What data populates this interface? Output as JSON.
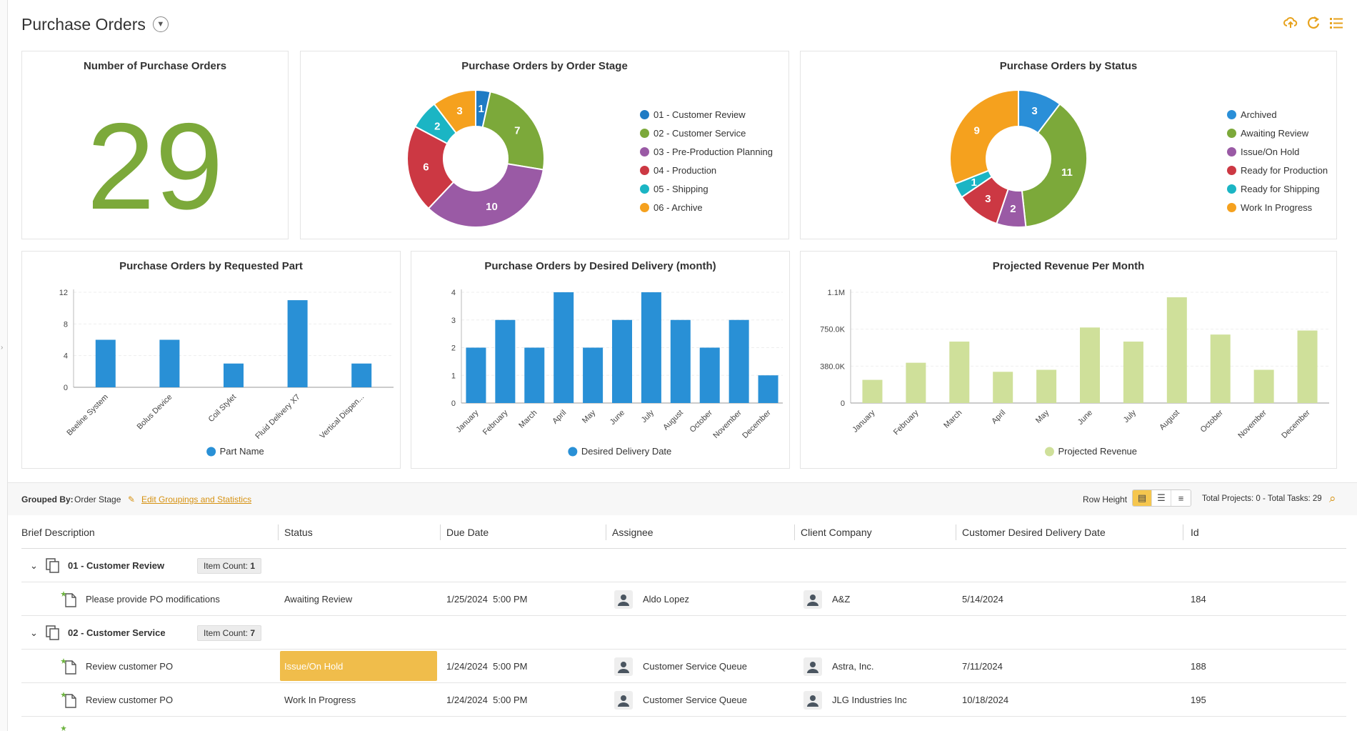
{
  "header": {
    "title": "Purchase Orders"
  },
  "toolbar": {
    "upload_icon": "cloud-upload-icon",
    "refresh_icon": "refresh-icon",
    "list_icon": "list-icon"
  },
  "kpi": {
    "title": "Number of Purchase Orders",
    "value": "29",
    "color": "#7ca93a"
  },
  "order_stage": {
    "title": "Purchase Orders by Order Stage",
    "slices": [
      {
        "label": "01 - Customer Review",
        "value": 1,
        "color": "#1e7bc4"
      },
      {
        "label": "02 - Customer Service",
        "value": 7,
        "color": "#7ca93a"
      },
      {
        "label": "03 - Pre-Production Planning",
        "value": 10,
        "color": "#9a5aa5"
      },
      {
        "label": "04 - Production",
        "value": 6,
        "color": "#cc3843"
      },
      {
        "label": "05 - Shipping",
        "value": 2,
        "color": "#1bb5c4"
      },
      {
        "label": "06 - Archive",
        "value": 3,
        "color": "#f5a11e"
      }
    ]
  },
  "status": {
    "title": "Purchase Orders by Status",
    "slices": [
      {
        "label": "Archived",
        "value": 3,
        "color": "#2a8fd8"
      },
      {
        "label": "Awaiting Review",
        "value": 11,
        "color": "#7ca93a"
      },
      {
        "label": "Issue/On Hold",
        "value": 2,
        "color": "#9a5aa5"
      },
      {
        "label": "Ready for Production",
        "value": 3,
        "color": "#cc3843"
      },
      {
        "label": "Ready for Shipping",
        "value": 1,
        "color": "#1bb5c4"
      },
      {
        "label": "Work In Progress",
        "value": 9,
        "color": "#f5a11e"
      }
    ]
  },
  "chart_data": [
    {
      "type": "bar",
      "title": "Purchase Orders by Requested Part",
      "categories": [
        "Beeline System",
        "Bolus Device",
        "Coil Stylet",
        "Fluid Delivery X7",
        "Vertical Dispen..."
      ],
      "series": [
        {
          "name": "Part Name",
          "values": [
            6,
            6,
            3,
            11,
            3
          ]
        }
      ],
      "ylim": [
        0,
        12
      ],
      "yticks": [
        "0",
        "4",
        "8",
        "12"
      ],
      "color": "#2990d6",
      "legend": "bottom"
    },
    {
      "type": "bar",
      "title": "Purchase Orders by Desired Delivery (month)",
      "categories": [
        "January",
        "February",
        "March",
        "April",
        "May",
        "June",
        "July",
        "August",
        "October",
        "November",
        "December"
      ],
      "series": [
        {
          "name": "Desired Delivery Date",
          "values": [
            2,
            3,
            2,
            4,
            2,
            3,
            4,
            3,
            2,
            3,
            1
          ]
        }
      ],
      "ylim": [
        0,
        4
      ],
      "yticks": [
        "0",
        "1",
        "2",
        "3",
        "4"
      ],
      "color": "#2990d6",
      "legend": "bottom"
    },
    {
      "type": "bar",
      "title": "Projected Revenue Per Month",
      "categories": [
        "January",
        "February",
        "March",
        "April",
        "May",
        "June",
        "July",
        "August",
        "October",
        "November",
        "December"
      ],
      "series": [
        {
          "name": "Projected Revenue",
          "values": [
            230000,
            400000,
            610000,
            310000,
            330000,
            750000,
            610000,
            1050000,
            680000,
            330000,
            720000
          ]
        }
      ],
      "ylim": [
        0,
        1100000
      ],
      "yticks": [
        "0",
        "380.0K",
        "750.0K",
        "1.1M"
      ],
      "color": "#cfe09a",
      "legend": "bottom"
    }
  ],
  "grid_toolbar": {
    "grouped_by_label": "Grouped By:",
    "grouped_by_value": "Order Stage",
    "edit_link": "Edit Groupings and Statistics",
    "row_height_label": "Row Height",
    "totals": "Total Projects: 0 - Total Tasks: 29"
  },
  "columns": [
    "Brief Description",
    "Status",
    "Due Date",
    "Assignee",
    "Client Company",
    "Customer Desired Delivery Date",
    "Id"
  ],
  "groups": [
    {
      "name": "01 - Customer Review",
      "count_label": "Item Count:",
      "count": "1",
      "rows": [
        {
          "description": "Please provide PO modifications",
          "status": "Awaiting Review",
          "due_date": "1/25/2024",
          "due_time": "5:00 PM",
          "assignee": "Aldo Lopez",
          "client": "A&Z",
          "desired_date": "5/14/2024",
          "id": "184"
        }
      ]
    },
    {
      "name": "02 - Customer Service",
      "count_label": "Item Count:",
      "count": "7",
      "rows": [
        {
          "description": "Review customer PO",
          "status": "Issue/On Hold",
          "due_date": "1/24/2024",
          "due_time": "5:00 PM",
          "assignee": "Customer Service Queue",
          "client": "Astra, Inc.",
          "desired_date": "7/11/2024",
          "id": "188"
        },
        {
          "description": "Review customer PO",
          "status": "Work In Progress",
          "due_date": "1/24/2024",
          "due_time": "5:00 PM",
          "assignee": "Customer Service Queue",
          "client": "JLG Industries Inc",
          "desired_date": "10/18/2024",
          "id": "195"
        }
      ]
    }
  ]
}
